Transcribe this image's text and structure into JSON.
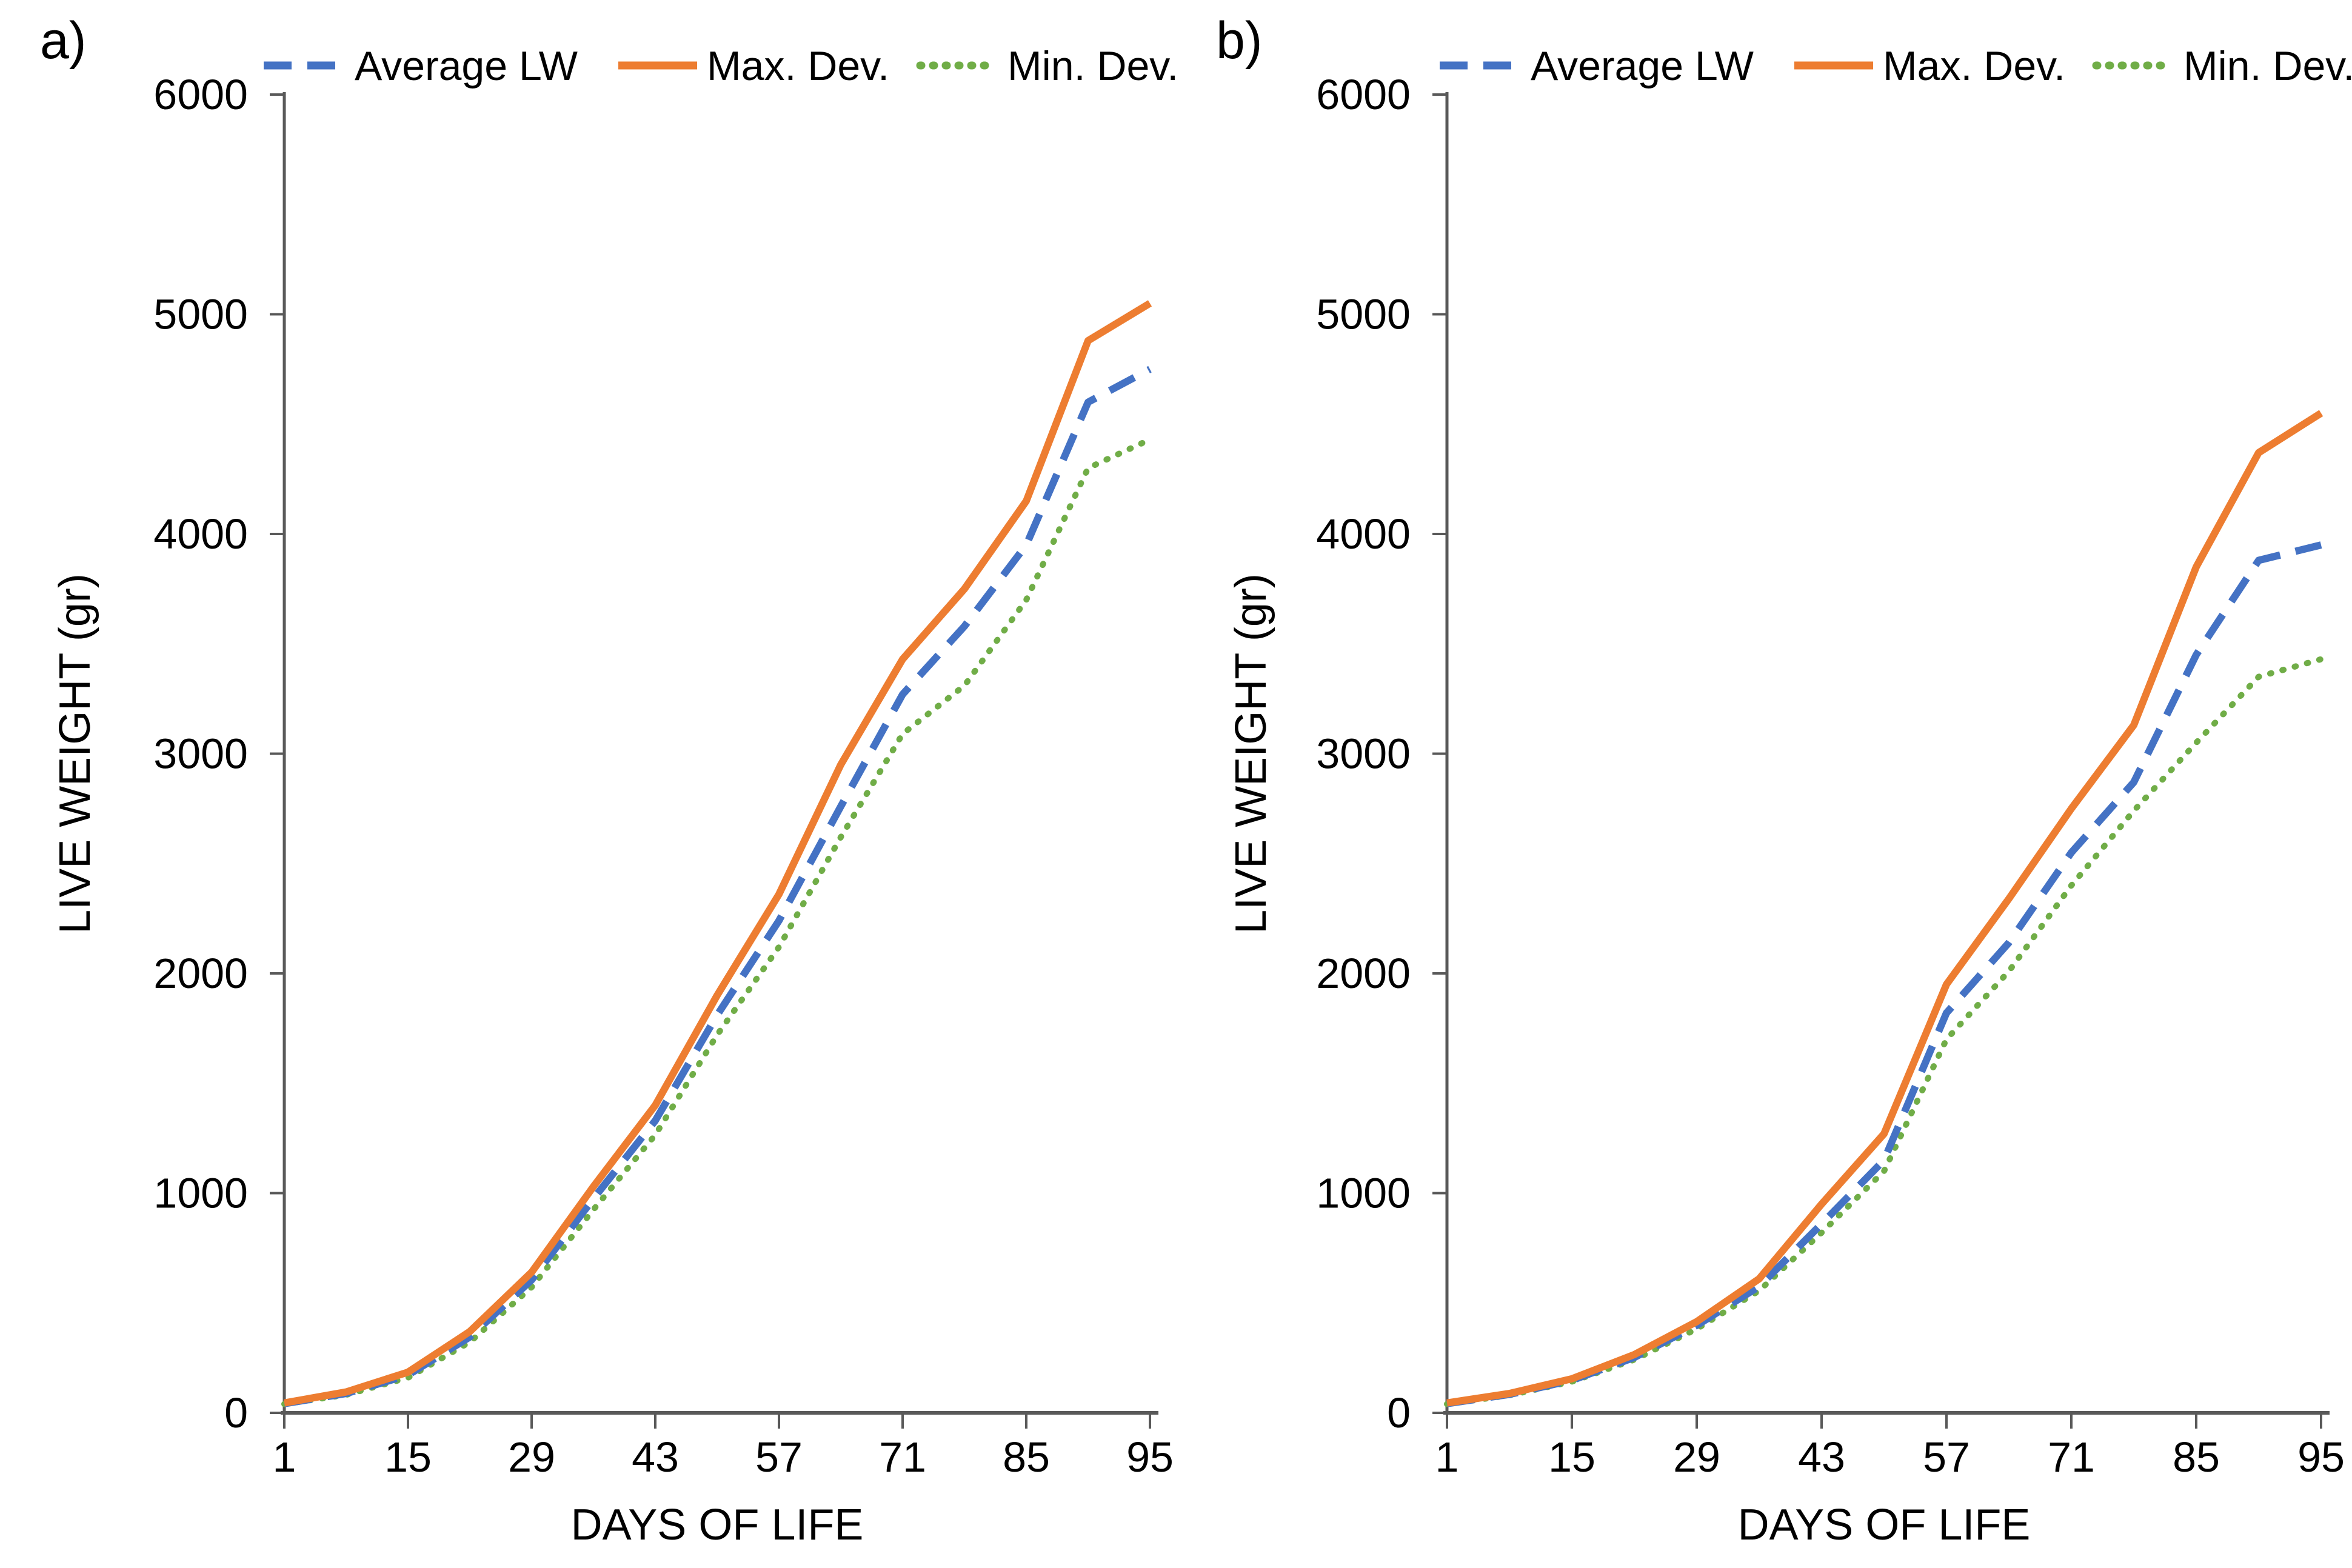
{
  "figure": {
    "background": "#ffffff",
    "axis_color": "#595959",
    "text_color": "#000000"
  },
  "chart_data": [
    {
      "type": "line",
      "panel_label": "a)",
      "xlabel": "DAYS OF LIFE",
      "ylabel": "LIVE WEIGHT (gr)",
      "x": [
        1,
        8,
        15,
        22,
        29,
        36,
        43,
        50,
        57,
        64,
        71,
        78,
        85,
        92,
        95
      ],
      "x_tick_labels": [
        "1",
        "15",
        "29",
        "43",
        "57",
        "71",
        "85",
        "95"
      ],
      "y_tick_labels": [
        "0",
        "1000",
        "2000",
        "3000",
        "4000",
        "5000",
        "6000"
      ],
      "ylim": [
        0,
        6000
      ],
      "ytick_interval": 1000,
      "grid": false,
      "legend_position": "top",
      "series": [
        {
          "name": "Average LW",
          "color": "#4472C4",
          "line_style": "dashed",
          "values": [
            42,
            88,
            172,
            345,
            605,
            975,
            1330,
            1810,
            2240,
            2760,
            3270,
            3580,
            3950,
            4600,
            4750
          ]
        },
        {
          "name": "Max. Dev.",
          "color": "#ED7D31",
          "line_style": "solid",
          "values": [
            45,
            95,
            185,
            370,
            640,
            1030,
            1400,
            1900,
            2360,
            2950,
            3430,
            3750,
            4150,
            4880,
            5050
          ]
        },
        {
          "name": "Min. Dev.",
          "color": "#70AD47",
          "line_style": "dotted",
          "values": [
            40,
            82,
            160,
            322,
            572,
            925,
            1265,
            1720,
            2120,
            2620,
            3090,
            3310,
            3700,
            4300,
            4430
          ]
        }
      ]
    },
    {
      "type": "line",
      "panel_label": "b)",
      "xlabel": "DAYS OF LIFE",
      "ylabel": "LIVE WEIGHT (gr)",
      "x": [
        1,
        8,
        15,
        22,
        29,
        36,
        43,
        50,
        57,
        64,
        71,
        78,
        85,
        92,
        95
      ],
      "x_tick_labels": [
        "1",
        "15",
        "29",
        "43",
        "57",
        "71",
        "85",
        "95"
      ],
      "y_tick_labels": [
        "0",
        "1000",
        "2000",
        "3000",
        "4000",
        "5000",
        "6000"
      ],
      "ylim": [
        0,
        6000
      ],
      "ytick_interval": 1000,
      "grid": false,
      "legend_position": "top",
      "series": [
        {
          "name": "Average LW",
          "color": "#4472C4",
          "line_style": "dashed",
          "values": [
            42,
            84,
            148,
            252,
            398,
            575,
            860,
            1150,
            1820,
            2140,
            2550,
            2870,
            3450,
            3880,
            3950
          ]
        },
        {
          "name": "Max. Dev.",
          "color": "#ED7D31",
          "line_style": "solid",
          "values": [
            45,
            88,
            155,
            265,
            415,
            610,
            950,
            1270,
            1950,
            2340,
            2750,
            3130,
            3850,
            4370,
            4550
          ]
        },
        {
          "name": "Min. Dev.",
          "color": "#70AD47",
          "line_style": "dotted",
          "values": [
            40,
            80,
            142,
            242,
            382,
            556,
            820,
            1100,
            1700,
            2010,
            2400,
            2740,
            3050,
            3350,
            3430
          ]
        }
      ]
    }
  ]
}
